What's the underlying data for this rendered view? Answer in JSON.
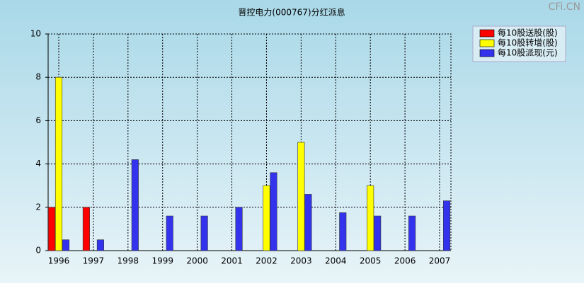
{
  "chart_data": {
    "type": "bar",
    "title": "晋控电力(000767)分红派息",
    "watermark": "CFi.CN",
    "categories": [
      "1996",
      "1997",
      "1998",
      "1999",
      "2000",
      "2001",
      "2002",
      "2003",
      "2004",
      "2005",
      "2006",
      "2007"
    ],
    "series": [
      {
        "name": "每10股送股(股)",
        "color": "#ff0000",
        "values": [
          2,
          2,
          null,
          null,
          null,
          null,
          null,
          null,
          null,
          null,
          null,
          null
        ]
      },
      {
        "name": "每10股转增(股)",
        "color": "#ffff00",
        "values": [
          8,
          null,
          null,
          null,
          null,
          null,
          3,
          5,
          null,
          3,
          null,
          null
        ]
      },
      {
        "name": "每10股派现(元)",
        "color": "#3333ee",
        "values": [
          0.5,
          0.5,
          4.2,
          1.6,
          1.6,
          2,
          3.6,
          2.6,
          1.75,
          1.6,
          1.6,
          2.3
        ]
      }
    ],
    "ylim": [
      0,
      10
    ],
    "yticks": [
      0,
      2,
      4,
      6,
      8,
      10
    ],
    "grid": true
  }
}
